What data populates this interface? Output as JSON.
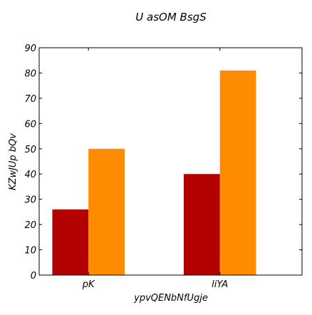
{
  "chart_data": {
    "type": "bar",
    "title": "U asOM BsgS",
    "xlabel": "ypvQENbNfUgje",
    "ylabel": "KZwJUp bQv",
    "categories": [
      "pK",
      "liYA"
    ],
    "series": [
      {
        "values": [
          26,
          40
        ],
        "color": "#b30000"
      },
      {
        "values": [
          50,
          81
        ],
        "color": "#ff8c00"
      }
    ],
    "ylim": [
      0,
      90
    ],
    "yticks": [
      0,
      10,
      20,
      30,
      40,
      50,
      60,
      70,
      80,
      90
    ],
    "grid": false,
    "legend": "none"
  }
}
